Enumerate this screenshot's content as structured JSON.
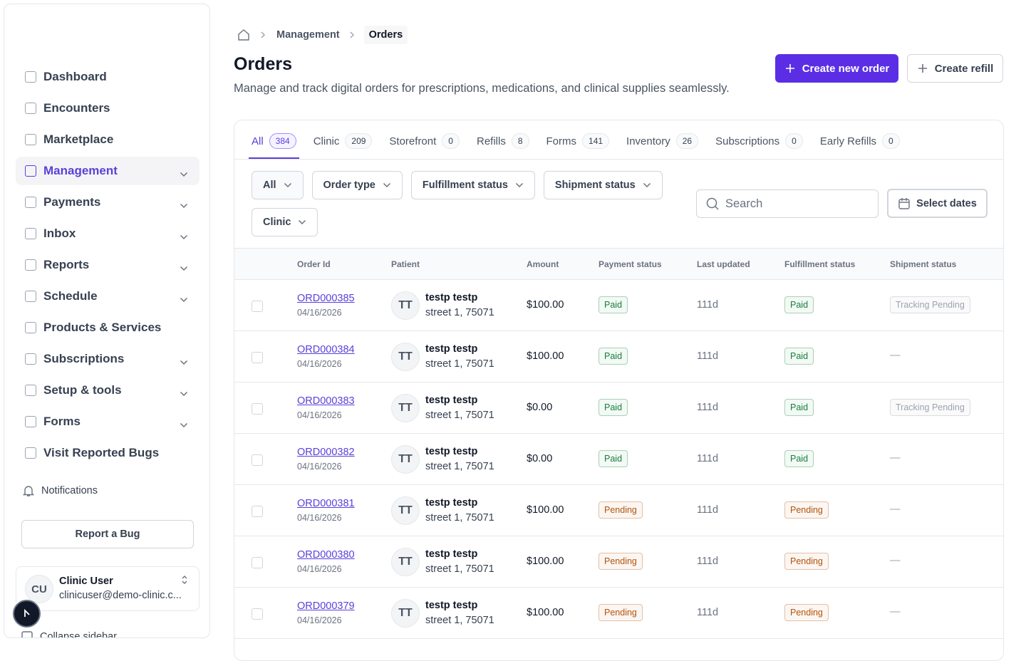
{
  "sidebar": {
    "active": 3,
    "nav": [
      {
        "label": "Dashboard",
        "has_menu": false
      },
      {
        "label": "Encounters",
        "has_menu": false
      },
      {
        "label": "Marketplace",
        "has_menu": false
      },
      {
        "label": "Management",
        "has_menu": true
      },
      {
        "label": "Payments",
        "has_menu": true
      },
      {
        "label": "Inbox",
        "has_menu": true
      },
      {
        "label": "Reports",
        "has_menu": true
      },
      {
        "label": "Schedule",
        "has_menu": true
      },
      {
        "label": "Products & Services",
        "has_menu": false
      },
      {
        "label": "Subscriptions",
        "has_menu": true
      },
      {
        "label": "Setup & tools",
        "has_menu": true
      },
      {
        "label": "Forms",
        "has_menu": true
      },
      {
        "label": "Visit Reported Bugs",
        "has_menu": false
      }
    ],
    "notifications": "Notifications",
    "report_bug": "Report a Bug",
    "user": {
      "initials": "CU",
      "name": "Clinic User",
      "email": "clinicuser@demo-clinic.c..."
    },
    "collapse": "Collapse sidebar"
  },
  "breadcrumb": [
    "Management",
    "Orders"
  ],
  "header": {
    "title": "Orders",
    "subtitle": "Manage and track digital orders for prescriptions, medications, and clinical supplies seamlessly.",
    "primary_button": "Create new order",
    "secondary_button": "Create refill"
  },
  "tabs": {
    "active": 0,
    "items": [
      {
        "label": "All",
        "count": 384
      },
      {
        "label": "Clinic",
        "count": 209
      },
      {
        "label": "Storefront",
        "count": 0
      },
      {
        "label": "Refills",
        "count": 8
      },
      {
        "label": "Forms",
        "count": 141
      },
      {
        "label": "Inventory",
        "count": 26
      },
      {
        "label": "Subscriptions",
        "count": 0
      },
      {
        "label": "Early Refills",
        "count": 0
      }
    ]
  },
  "filters": [
    "All",
    "Order type",
    "Fulfillment status",
    "Shipment status",
    "Clinic"
  ],
  "search_placeholder": "Search",
  "date_button": "Select dates",
  "badge_colors": {
    "Paid": "#15803d",
    "Pending": "#b45309",
    "Tracking Pending": "#9ca3af"
  },
  "table": {
    "columns": [
      "Order Id",
      "Patient",
      "Amount",
      "Payment status",
      "Last updated",
      "Fulfillment status",
      "Shipment status"
    ],
    "rows": [
      {
        "id": "ORD000385",
        "date": "04/16/2026",
        "initials": "TT",
        "name": "testp testp",
        "address": "street 1, 75071",
        "amount": "$100.00",
        "payment": "Paid",
        "updated": "111d",
        "fulfillment": "Paid",
        "shipment": "Tracking Pending"
      },
      {
        "id": "ORD000384",
        "date": "04/16/2026",
        "initials": "TT",
        "name": "testp testp",
        "address": "street 1, 75071",
        "amount": "$100.00",
        "payment": "Paid",
        "updated": "111d",
        "fulfillment": "Paid",
        "shipment": "—"
      },
      {
        "id": "ORD000383",
        "date": "04/16/2026",
        "initials": "TT",
        "name": "testp testp",
        "address": "street 1, 75071",
        "amount": "$0.00",
        "payment": "Paid",
        "updated": "111d",
        "fulfillment": "Paid",
        "shipment": "Tracking Pending"
      },
      {
        "id": "ORD000382",
        "date": "04/16/2026",
        "initials": "TT",
        "name": "testp testp",
        "address": "street 1, 75071",
        "amount": "$0.00",
        "payment": "Paid",
        "updated": "111d",
        "fulfillment": "Paid",
        "shipment": "—"
      },
      {
        "id": "ORD000381",
        "date": "04/16/2026",
        "initials": "TT",
        "name": "testp testp",
        "address": "street 1, 75071",
        "amount": "$100.00",
        "payment": "Pending",
        "updated": "111d",
        "fulfillment": "Pending",
        "shipment": "—"
      },
      {
        "id": "ORD000380",
        "date": "04/16/2026",
        "initials": "TT",
        "name": "testp testp",
        "address": "street 1, 75071",
        "amount": "$100.00",
        "payment": "Pending",
        "updated": "111d",
        "fulfillment": "Pending",
        "shipment": "—"
      },
      {
        "id": "ORD000379",
        "date": "04/16/2026",
        "initials": "TT",
        "name": "testp testp",
        "address": "street 1, 75071",
        "amount": "$100.00",
        "payment": "Pending",
        "updated": "111d",
        "fulfillment": "Pending",
        "shipment": "—"
      }
    ]
  }
}
